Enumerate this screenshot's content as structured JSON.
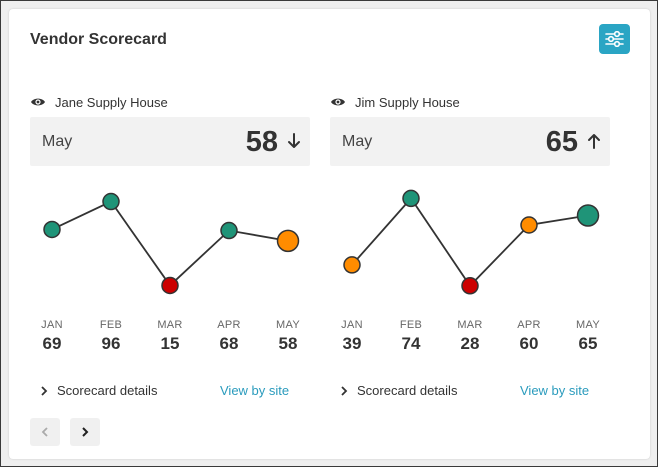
{
  "widget": {
    "title": "Vendor Scorecard",
    "settings_icon": "sliders-icon",
    "accent_color": "#2aa5c4"
  },
  "vendors": [
    {
      "name": "Jane Supply House",
      "month_label": "May",
      "month_value": "58",
      "trend": "down",
      "details_label": "Scorecard details",
      "site_label": "View by site",
      "chart_data": {
        "type": "line",
        "categories": [
          "JAN",
          "FEB",
          "MAR",
          "APR",
          "MAY"
        ],
        "values": [
          69,
          96,
          15,
          68,
          58
        ],
        "point_colors": [
          "#1f9478",
          "#1f9478",
          "#cc0000",
          "#1f9478",
          "#ff8c00"
        ],
        "ylim": [
          0,
          110
        ]
      }
    },
    {
      "name": "Jim Supply House",
      "month_label": "May",
      "month_value": "65",
      "trend": "up",
      "details_label": "Scorecard details",
      "site_label": "View by site",
      "chart_data": {
        "type": "line",
        "categories": [
          "JAN",
          "FEB",
          "MAR",
          "APR",
          "MAY"
        ],
        "values": [
          39,
          74,
          28,
          60,
          65
        ],
        "point_colors": [
          "#ff8c00",
          "#1f9478",
          "#cc0000",
          "#ff8c00",
          "#1f9478"
        ],
        "ylim": [
          20,
          80
        ]
      }
    }
  ],
  "pager": {
    "prev_icon": "chevron-left-icon",
    "next_icon": "chevron-right-icon"
  }
}
